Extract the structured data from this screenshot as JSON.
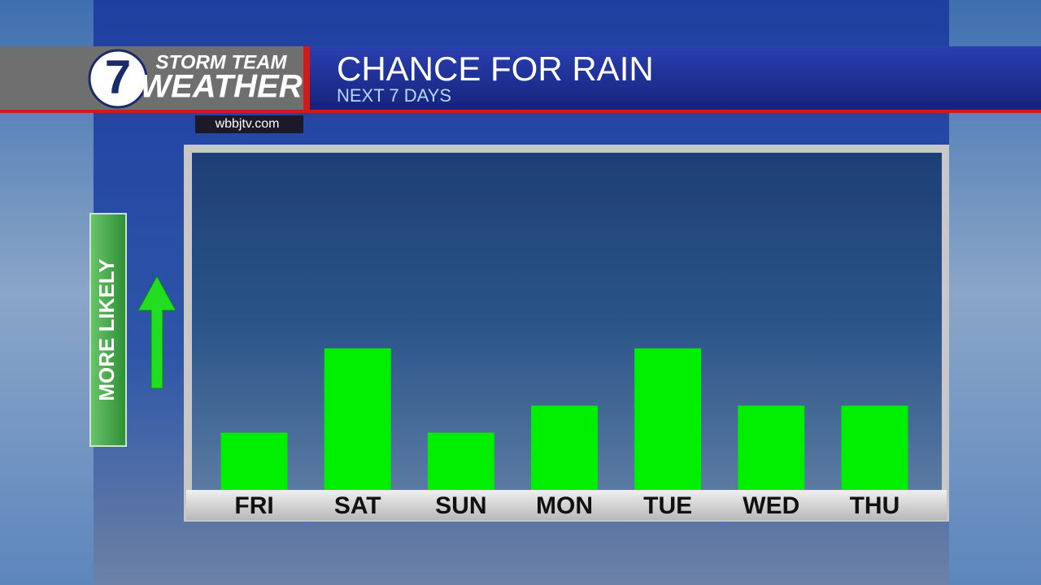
{
  "header": {
    "logo_number": "7",
    "logo_line1": "STORM TEAM",
    "logo_line2": "WEATHER",
    "website": "wbbjtv.com"
  },
  "side_label": "MORE LIKELY",
  "chart_data": {
    "type": "bar",
    "title": "CHANCE FOR RAIN",
    "subtitle": "NEXT 7 DAYS",
    "categories": [
      "FRI",
      "SAT",
      "SUN",
      "MON",
      "TUE",
      "WED",
      "THU"
    ],
    "values": [
      17,
      42,
      17,
      25,
      42,
      25,
      25
    ],
    "color": "#00ee00",
    "ylim": [
      0,
      100
    ]
  }
}
